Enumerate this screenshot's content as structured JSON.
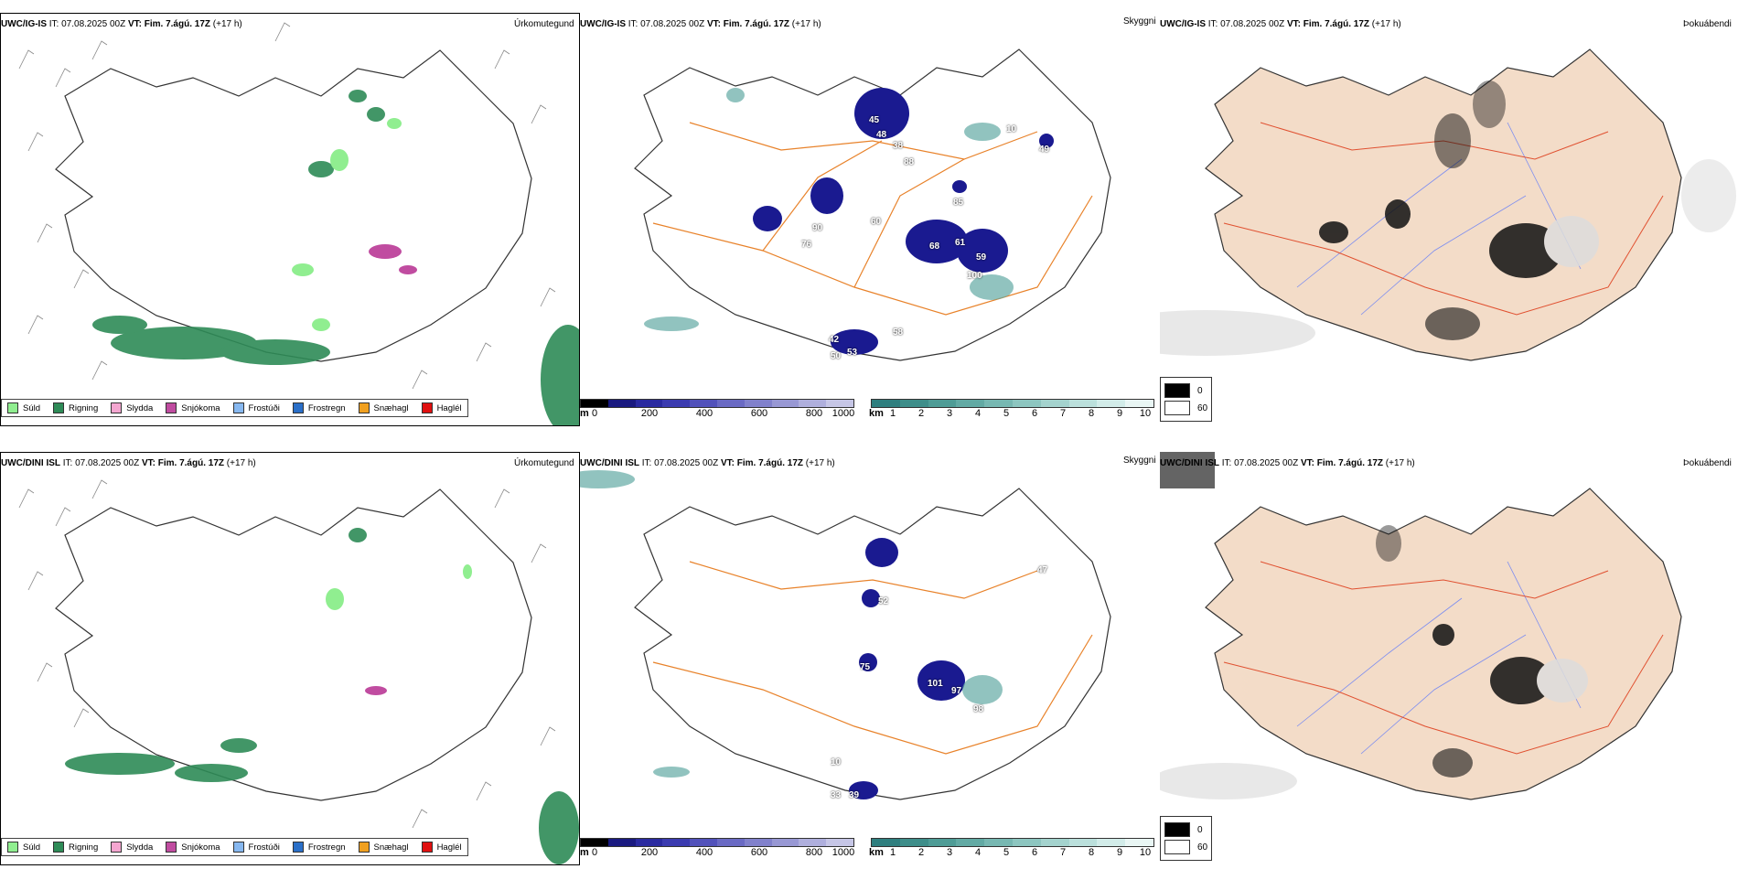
{
  "rows": [
    {
      "model": "UWC/IG-IS",
      "it_label": "IT: 07.08.2025 00Z",
      "vt_label": "VT: Fim. 7.ágú. 17Z",
      "lead": "(+17 h)",
      "precip_title": "Úrkomutegund",
      "cloud_title": "Skyggni",
      "fog_title": "Þokuábendi",
      "cloud_values": [
        "90",
        "76",
        "60",
        "61",
        "68",
        "59",
        "100",
        "85",
        "48",
        "88",
        "42",
        "53",
        "50",
        "58",
        "10",
        "49",
        "45",
        "38"
      ]
    },
    {
      "model": "UWC/DINI ISL",
      "it_label": "IT: 07.08.2025 00Z",
      "vt_label": "VT: Fim. 7.ágú. 17Z",
      "lead": "(+17 h)",
      "precip_title": "Úrkomutegund",
      "cloud_title": "Skyggni",
      "fog_title": "Þokuábendi",
      "cloud_values": [
        "75",
        "101",
        "97",
        "98",
        "33",
        "39",
        "10",
        "52",
        "47"
      ]
    }
  ],
  "precip_legend": [
    {
      "label": "Súld",
      "color": "#90ee90"
    },
    {
      "label": "Rigning",
      "color": "#2e8b57"
    },
    {
      "label": "Slydda",
      "color": "#f4a6d0"
    },
    {
      "label": "Snjókoma",
      "color": "#c04ca0"
    },
    {
      "label": "Frostúði",
      "color": "#87b8f0"
    },
    {
      "label": "Frostregn",
      "color": "#2a6fc8"
    },
    {
      "label": "Snæhagl",
      "color": "#f0a020"
    },
    {
      "label": "Haglél",
      "color": "#e01010"
    }
  ],
  "ceiling_bar": {
    "unit": "m",
    "ticks": [
      "0",
      "200",
      "400",
      "600",
      "800",
      "1000"
    ],
    "colors": [
      "#000000",
      "#1a1a80",
      "#2a2aa0",
      "#3b3bb0",
      "#5252bb",
      "#6a6ac4",
      "#8181cc",
      "#9898d4",
      "#afafdd",
      "#c6c6e6"
    ]
  },
  "visibility_bar": {
    "unit": "km",
    "ticks": [
      "1",
      "2",
      "3",
      "4",
      "5",
      "6",
      "7",
      "8",
      "9",
      "10"
    ],
    "colors": [
      "#2f7f7f",
      "#3e8e8a",
      "#4e9c96",
      "#62aaa4",
      "#77b8b2",
      "#8dc6c0",
      "#a4d3ce",
      "#bbe0dc",
      "#d2ece9",
      "#e9f6f4"
    ]
  },
  "fog_legend": [
    {
      "label": "0",
      "color": "#000000"
    },
    {
      "label": "60",
      "color": "#ffffff"
    }
  ]
}
